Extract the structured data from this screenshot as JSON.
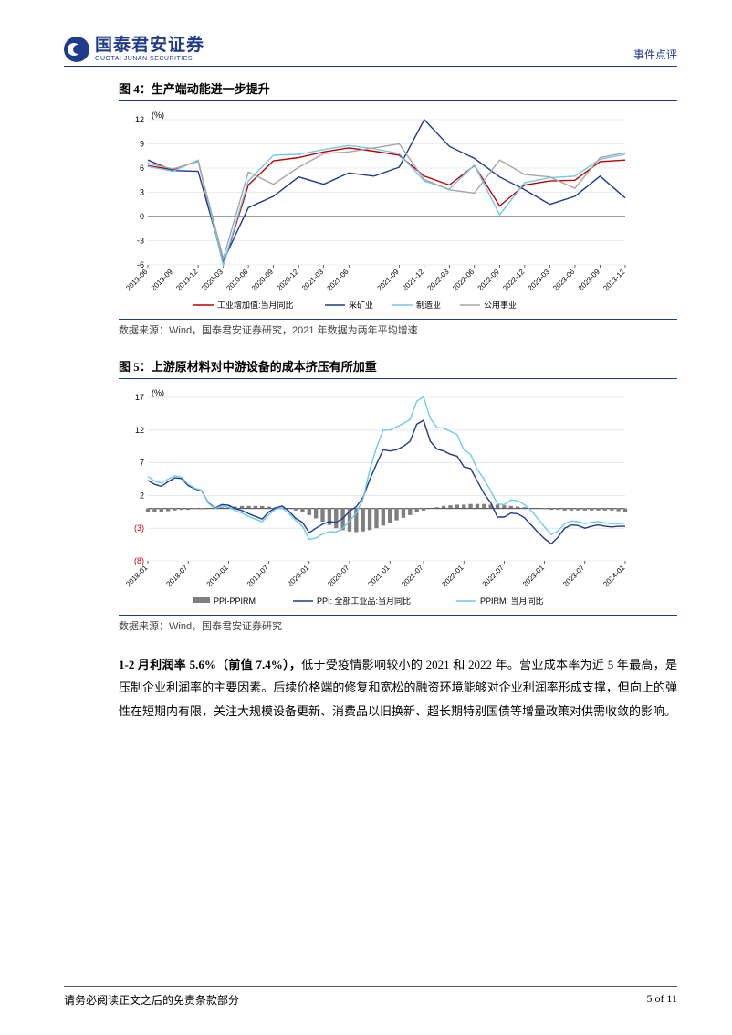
{
  "header": {
    "logo_cn": "国泰君安证券",
    "logo_en": "GUOTAI JUNAN SECURITIES",
    "doc_type": "事件点评"
  },
  "fig4": {
    "type": "line",
    "title": "图 4：生产端动能进一步提升",
    "source": "数据来源：Wind，国泰君安证券研究，2021 年数据为两年平均增速",
    "y_unit": "(%)",
    "ylim": [
      -6,
      12
    ],
    "yticks": [
      -6,
      -3,
      0,
      3,
      6,
      9,
      12
    ],
    "x_labels": [
      "2019-06",
      "2019-09",
      "2019-12",
      "2020-03",
      "2020-06",
      "2020-09",
      "2020-12",
      "2021-03",
      "2021-06",
      "2021-09",
      "2021-12",
      "2022-03",
      "2022-06",
      "2022-09",
      "2022-12",
      "2023-03",
      "2023-06",
      "2023-09",
      "2023-12"
    ],
    "background_color": "#ffffff",
    "grid_color": "#d9d9d9",
    "axis_color": "#000000",
    "label_fontsize": 9,
    "tick_fontsize": 8,
    "line_width": 1.4,
    "series": [
      {
        "name": "工业增加值:当月同比",
        "color": "#c00000",
        "data": [
          6.3,
          5.8,
          6.9,
          -6,
          3.9,
          6.9,
          7.3,
          8,
          8.5,
          8.1,
          7.6,
          5,
          3.9,
          6.3,
          1.3,
          3.9,
          4.4,
          4.5,
          6.8,
          7
        ],
        "dash": "none"
      },
      {
        "name": "采矿业",
        "color": "#1f3b8a",
        "data": [
          7,
          5.7,
          5.6,
          -5.5,
          1.1,
          2.5,
          4.9,
          4,
          5.4,
          5,
          6.1,
          12,
          8.7,
          7.2,
          4.9,
          3.3,
          1.5,
          2.5,
          5,
          2.3
        ],
        "dash": "none"
      },
      {
        "name": "制造业",
        "color": "#6fcaea",
        "data": [
          6.2,
          5.6,
          7,
          -6,
          4.4,
          7.6,
          7.7,
          8.3,
          8.8,
          8.4,
          7.8,
          4.4,
          3.4,
          6.4,
          0.2,
          4.2,
          4.8,
          5,
          7.1,
          7.7
        ],
        "dash": "none"
      },
      {
        "name": "公用事业",
        "color": "#a6a6a6",
        "data": [
          6.6,
          5.9,
          6.8,
          -5.2,
          5.5,
          4,
          6.1,
          7.8,
          8,
          8.5,
          9,
          4.6,
          3.3,
          2.9,
          7,
          5.2,
          4.9,
          3.5,
          7.3,
          7.9
        ],
        "dash": "none"
      }
    ],
    "legend": [
      "工业增加值:当月同比",
      "采矿业",
      "制造业",
      "公用事业"
    ]
  },
  "fig5": {
    "type": "line-bar",
    "title": "图 5：上游原材料对中游设备的成本挤压有所加重",
    "source": "数据来源：Wind，国泰君安证券研究",
    "y_unit": "(%)",
    "ylim": [
      -8,
      17
    ],
    "yticks_pos": [
      2,
      7,
      12,
      17
    ],
    "yticks_neg": [
      -3,
      -8
    ],
    "yticks_neg_labels": [
      "(3)",
      "(8)"
    ],
    "x_labels": [
      "2018-01",
      "2018-07",
      "2019-01",
      "2019-07",
      "2020-01",
      "2020-07",
      "2021-01",
      "2021-07",
      "2022-01",
      "2022-07",
      "2023-01",
      "2023-07",
      "2024-01"
    ],
    "background_color": "#ffffff",
    "grid_color": "#d9d9d9",
    "axis_color": "#000000",
    "label_fontsize": 9,
    "tick_fontsize": 8,
    "line_width": 1.4,
    "bar_series": {
      "name": "PPI-PPIRM",
      "color": "#7f7f7f",
      "data": [
        -0.6,
        -0.5,
        -0.5,
        -0.4,
        -0.3,
        -0.2,
        -0.2,
        -0.1,
        -0.1,
        0,
        0.1,
        0.2,
        0.3,
        0.3,
        0.4,
        0.4,
        0.4,
        0.4,
        0.3,
        0.2,
        0.1,
        0,
        -0.3,
        -0.6,
        -1,
        -1.5,
        -2,
        -2.5,
        -3,
        -3.3,
        -3.5,
        -3.6,
        -3.5,
        -3.3,
        -3,
        -2.6,
        -2.2,
        -1.8,
        -1.4,
        -1,
        -0.6,
        -0.3,
        0,
        0.2,
        0.4,
        0.5,
        0.6,
        0.6,
        0.7,
        0.7,
        0.7,
        0.6,
        0.6,
        0.5,
        0.4,
        0.3,
        0.2,
        0.1,
        0,
        -0.1,
        -0.2,
        -0.2,
        -0.3,
        -0.3,
        -0.3,
        -0.3,
        -0.3,
        -0.3,
        -0.3,
        -0.3,
        -0.4,
        -0.5
      ]
    },
    "line_series": [
      {
        "name": "PPI: 全部工业品:当月同比",
        "color": "#1f3b8a",
        "data": [
          4.3,
          3.7,
          3.4,
          4.1,
          4.7,
          4.6,
          3.5,
          3.0,
          2.7,
          0.9,
          0.1,
          0.6,
          0.5,
          0,
          -0.3,
          -0.8,
          -1.2,
          -1.6,
          -0.5,
          0.1,
          0.4,
          -0.4,
          -1.5,
          -2.1,
          -3.7,
          -3,
          -2.4,
          -2,
          -2.1,
          -1.5,
          -0.4,
          0.3,
          1.7,
          4.4,
          6.8,
          9,
          8.8,
          9.0,
          9.5,
          10.3,
          12.9,
          13.5,
          10.3,
          9.1,
          8.8,
          8.3,
          8,
          6.4,
          6.1,
          4.2,
          2.3,
          0.9,
          -1.3,
          -1.3,
          -0.7,
          -0.8,
          -1.4,
          -2.5,
          -3.6,
          -4.6,
          -5.4,
          -4.4,
          -3,
          -2.5,
          -2.6,
          -3,
          -2.7,
          -2.5,
          -2.7,
          -2.8,
          -2.7,
          -2.7
        ]
      },
      {
        "name": "PPIRM: 当月同比",
        "color": "#6fcaea",
        "data": [
          4.9,
          4.2,
          3.9,
          4.5,
          5,
          4.8,
          3.7,
          3.1,
          2.8,
          0.8,
          0,
          0.4,
          0.2,
          -0.3,
          -0.7,
          -1.2,
          -1.6,
          -2,
          -0.9,
          -0.1,
          0.1,
          -0.8,
          -1.8,
          -2.7,
          -4.7,
          -4.5,
          -3.9,
          -3.5,
          -3.6,
          -3.0,
          -1.9,
          -0.7,
          1.4,
          5.9,
          9.3,
          12,
          12,
          12.5,
          13,
          13.6,
          16.4,
          17.1,
          13.8,
          12.4,
          12.3,
          11.8,
          11.3,
          9,
          8.3,
          6,
          4.5,
          2.7,
          0.7,
          0.6,
          1.3,
          1.2,
          0.6,
          -0.3,
          -1.5,
          -2.8,
          -4,
          -3.4,
          -2.3,
          -1.9,
          -2,
          -2.3,
          -2.1,
          -2,
          -2.2,
          -2.3,
          -2.3,
          -2.2
        ]
      }
    ],
    "legend": [
      "PPI-PPIRM",
      "PPI: 全部工业品:当月同比",
      "PPIRM: 当月同比"
    ]
  },
  "body": {
    "p1_bold": "1-2 月利润率 5.6%（前值 7.4%），",
    "p1_rest": "低于受疫情影响较小的 2021 和 2022 年。营业成本率为近 5 年最高，是压制企业利润率的主要因素。后续价格端的修复和宽松的融资环境能够对企业利润率形成支撑，但向上的弹性在短期内有限，关注大规模设备更新、消费品以旧换新、超长期特别国债等增量政策对供需收敛的影响。"
  },
  "footer": {
    "disclaimer": "请务必阅读正文之后的免责条款部分",
    "page": "5 of 11"
  }
}
